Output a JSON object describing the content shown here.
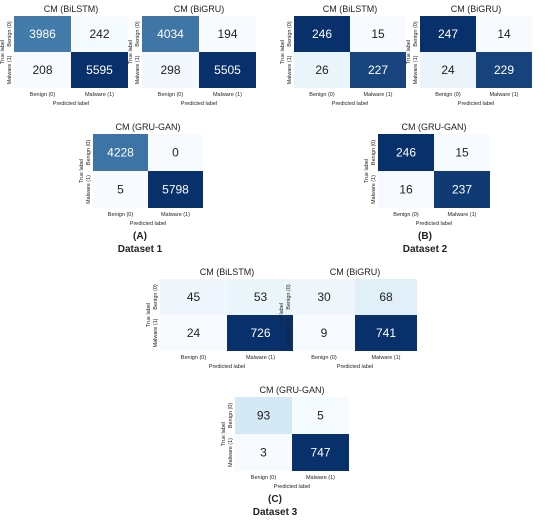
{
  "chart_data": [
    {
      "type": "heatmap",
      "title": "CM (BiLSTM)",
      "dataset": 1,
      "xlabel": "Predicted label",
      "ylabel": "True label",
      "x_categories": [
        "Benign (0)",
        "Malware (1)"
      ],
      "y_categories": [
        "Benign (0)",
        "Malware (1)"
      ],
      "values": [
        [
          3986,
          242
        ],
        [
          208,
          5595
        ]
      ]
    },
    {
      "type": "heatmap",
      "title": "CM (BiGRU)",
      "dataset": 1,
      "xlabel": "Predicted label",
      "ylabel": "True label",
      "x_categories": [
        "Benign (0)",
        "Malware (1)"
      ],
      "y_categories": [
        "Benign (0)",
        "Malware (1)"
      ],
      "values": [
        [
          4034,
          194
        ],
        [
          298,
          5505
        ]
      ]
    },
    {
      "type": "heatmap",
      "title": "CM (BiLSTM)",
      "dataset": 2,
      "xlabel": "Predicted label",
      "ylabel": "True label",
      "x_categories": [
        "Benign (0)",
        "Malware (1)"
      ],
      "y_categories": [
        "Benign (0)",
        "Malware (1)"
      ],
      "values": [
        [
          246,
          15
        ],
        [
          26,
          227
        ]
      ]
    },
    {
      "type": "heatmap",
      "title": "CM (BiGRU)",
      "dataset": 2,
      "xlabel": "Predicted label",
      "ylabel": "True label",
      "x_categories": [
        "Benign (0)",
        "Malware (1)"
      ],
      "y_categories": [
        "Benign (0)",
        "Malware (1)"
      ],
      "values": [
        [
          247,
          14
        ],
        [
          24,
          229
        ]
      ]
    },
    {
      "type": "heatmap",
      "title": "CM (GRU-GAN)",
      "dataset": 1,
      "xlabel": "Predicted label",
      "ylabel": "True label",
      "x_categories": [
        "Benign (0)",
        "Malware (1)"
      ],
      "y_categories": [
        "Benign (0)",
        "Malware (1)"
      ],
      "values": [
        [
          4228,
          0
        ],
        [
          5,
          5798
        ]
      ]
    },
    {
      "type": "heatmap",
      "title": "CM (GRU-GAN)",
      "dataset": 2,
      "xlabel": "Predicted label",
      "ylabel": "True label",
      "x_categories": [
        "Benign (0)",
        "Malware (1)"
      ],
      "y_categories": [
        "Benign (0)",
        "Malware (1)"
      ],
      "values": [
        [
          246,
          15
        ],
        [
          16,
          237
        ]
      ]
    },
    {
      "type": "heatmap",
      "title": "CM (BiLSTM)",
      "dataset": 3,
      "xlabel": "Predicted label",
      "ylabel": "True label",
      "x_categories": [
        "Benign (0)",
        "Malware (1)"
      ],
      "y_categories": [
        "Benign (0)",
        "Malware (1)"
      ],
      "values": [
        [
          45,
          53
        ],
        [
          24,
          726
        ]
      ]
    },
    {
      "type": "heatmap",
      "title": "CM (BiGRU)",
      "dataset": 3,
      "xlabel": "Predicted label",
      "ylabel": "True label",
      "x_categories": [
        "Benign (0)",
        "Malware (1)"
      ],
      "y_categories": [
        "Benign (0)",
        "Malware (1)"
      ],
      "values": [
        [
          30,
          68
        ],
        [
          9,
          741
        ]
      ]
    },
    {
      "type": "heatmap",
      "title": "CM (GRU-GAN)",
      "dataset": 3,
      "xlabel": "Predicted label",
      "ylabel": "True label",
      "x_categories": [
        "Benign (0)",
        "Malware (1)"
      ],
      "y_categories": [
        "Benign (0)",
        "Malware (1)"
      ],
      "values": [
        [
          93,
          5
        ],
        [
          3,
          747
        ]
      ]
    }
  ],
  "captions": [
    {
      "letter": "(A)",
      "dataset": "Dataset 1"
    },
    {
      "letter": "(B)",
      "dataset": "Dataset 2"
    },
    {
      "letter": "(C)",
      "dataset": "Dataset 3"
    }
  ],
  "colors": {
    "low": "#f7fbff",
    "high": "#08306b",
    "text_dark": "#222222",
    "text_light": "#ffffff"
  }
}
